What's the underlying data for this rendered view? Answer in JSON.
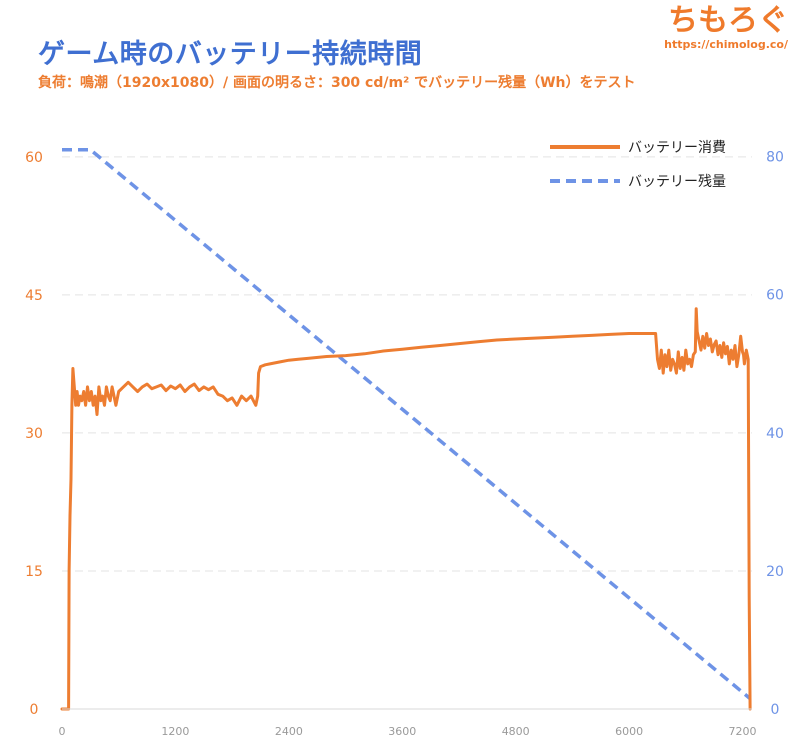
{
  "brand": {
    "name": "ちもろぐ",
    "url": "https://chimolog.co/"
  },
  "chart_data": {
    "type": "line",
    "title": "ゲーム時のバッテリー持続時間",
    "subtitle": "負荷：鳴潮（1920x1080）/ 画面の明るさ：300 cd/m² でバッテリー残量（Wh）をテスト",
    "xlabel": "",
    "ylabel": "",
    "xlim": [
      0,
      7300
    ],
    "ylim_left": [
      0,
      64
    ],
    "ylim_right": [
      0,
      85.3
    ],
    "x_ticks": [
      "0",
      "1200",
      "2400",
      "3600",
      "4800",
      "6000",
      "7200"
    ],
    "y_ticks_left": [
      "0",
      "15",
      "30",
      "45",
      "60"
    ],
    "y_ticks_right": [
      "0",
      "20",
      "40",
      "60",
      "80"
    ],
    "grid": "horizontal dashed",
    "legend_position": "top-right",
    "colors": {
      "consumption": "#ed7d31",
      "remaining": "#6e93e6"
    },
    "series": [
      {
        "name": "バッテリー消費",
        "axis": "left",
        "style": "solid",
        "x": [
          0,
          70,
          75,
          85,
          95,
          105,
          115,
          130,
          145,
          160,
          175,
          190,
          210,
          230,
          250,
          270,
          290,
          310,
          330,
          350,
          370,
          390,
          410,
          430,
          450,
          470,
          490,
          510,
          530,
          550,
          570,
          600,
          650,
          700,
          750,
          800,
          850,
          900,
          950,
          1000,
          1050,
          1100,
          1150,
          1200,
          1250,
          1300,
          1350,
          1400,
          1450,
          1500,
          1550,
          1600,
          1650,
          1700,
          1750,
          1800,
          1850,
          1900,
          1950,
          2000,
          2050,
          2070,
          2080,
          2100,
          2150,
          2200,
          2300,
          2400,
          2500,
          2600,
          2800,
          3000,
          3200,
          3400,
          3600,
          3800,
          4000,
          4200,
          4400,
          4600,
          4800,
          5000,
          5200,
          5400,
          5600,
          5800,
          6000,
          6200,
          6280,
          6300,
          6320,
          6340,
          6360,
          6380,
          6400,
          6420,
          6440,
          6460,
          6480,
          6500,
          6520,
          6540,
          6560,
          6580,
          6600,
          6620,
          6640,
          6660,
          6680,
          6700,
          6710,
          6720,
          6740,
          6760,
          6780,
          6800,
          6820,
          6840,
          6860,
          6880,
          6900,
          6920,
          6940,
          6960,
          6980,
          7000,
          7020,
          7040,
          7060,
          7080,
          7100,
          7120,
          7140,
          7160,
          7180,
          7200,
          7210,
          7220,
          7240,
          7260,
          7270,
          7280
        ],
        "values": [
          0,
          0,
          15,
          21,
          25,
          33,
          37,
          35,
          33,
          34.5,
          33,
          34,
          33.5,
          34.5,
          33,
          35,
          33.5,
          34.5,
          33,
          34,
          32,
          35,
          33.5,
          34,
          33,
          35,
          34,
          33.5,
          35,
          34,
          33,
          34.5,
          35,
          35.5,
          35,
          34.5,
          35,
          35.3,
          34.8,
          35,
          35.2,
          34.6,
          35.1,
          34.8,
          35.2,
          34.5,
          35,
          35.3,
          34.6,
          35,
          34.7,
          35,
          34.2,
          34,
          33.5,
          33.8,
          33,
          34,
          33.5,
          34,
          33,
          34,
          36.5,
          37.2,
          37.4,
          37.5,
          37.7,
          37.9,
          38.0,
          38.1,
          38.3,
          38.4,
          38.6,
          38.9,
          39.1,
          39.3,
          39.5,
          39.7,
          39.9,
          40.1,
          40.2,
          40.3,
          40.4,
          40.5,
          40.6,
          40.7,
          40.8,
          40.8,
          40.8,
          38,
          37,
          39,
          36.5,
          38.5,
          37.2,
          39,
          36.8,
          38,
          37.5,
          36.5,
          38.8,
          37,
          38.2,
          36.8,
          39,
          37.5,
          38,
          37.2,
          38.5,
          38.8,
          43.5,
          41,
          40,
          39,
          40.5,
          39.2,
          40.8,
          39.5,
          40.2,
          38.8,
          39.6,
          40,
          38.5,
          39.5,
          38.2,
          39.8,
          38.6,
          39.4,
          37.5,
          39,
          38,
          39.5,
          37.2,
          38.5,
          40.5,
          38.8,
          38.5,
          37.5,
          39,
          38,
          12,
          0
        ]
      },
      {
        "name": "バッテリー残量",
        "axis": "right",
        "style": "dashed",
        "x": [
          0,
          300,
          7280
        ],
        "values": [
          81,
          81,
          1.5
        ]
      }
    ]
  }
}
